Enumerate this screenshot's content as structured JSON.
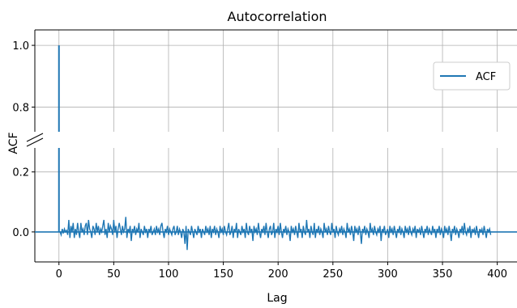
{
  "chart_data": {
    "type": "line",
    "title": "Autocorrelation",
    "xlabel": "Lag",
    "ylabel": "ACF",
    "grid": true,
    "broken_y_axis": true,
    "xlim": [
      -22,
      418
    ],
    "xticks": [
      0,
      50,
      100,
      150,
      200,
      250,
      300,
      350,
      400
    ],
    "upper_panel": {
      "ylim": [
        0.72,
        1.05
      ],
      "yticks": [
        1.0,
        0.8
      ]
    },
    "lower_panel": {
      "ylim": [
        -0.1,
        0.28
      ],
      "yticks": [
        0.2,
        0.0
      ]
    },
    "legend": {
      "position": "top-right",
      "entries": [
        "ACF"
      ]
    },
    "series": [
      {
        "name": "ACF",
        "color": "#1f77b4",
        "lag0": 1.0,
        "lags_start": 1,
        "values": [
          0.0,
          -0.01,
          0.01,
          -0.005,
          0.01,
          0.0,
          0.005,
          -0.01,
          0.04,
          -0.02,
          0.02,
          0.0,
          0.03,
          -0.02,
          0.01,
          -0.01,
          0.03,
          0.0,
          -0.02,
          0.03,
          0.0,
          0.01,
          -0.01,
          0.02,
          0.03,
          -0.01,
          0.04,
          0.01,
          0.0,
          -0.02,
          0.02,
          0.01,
          -0.01,
          0.03,
          0.0,
          0.02,
          -0.01,
          0.01,
          0.0,
          0.02,
          0.04,
          -0.01,
          0.01,
          -0.02,
          0.03,
          0.0,
          0.02,
          0.01,
          -0.01,
          0.04,
          0.0,
          0.02,
          -0.02,
          0.01,
          0.03,
          0.01,
          -0.01,
          0.02,
          0.0,
          0.01,
          0.05,
          -0.02,
          0.01,
          0.0,
          0.02,
          -0.03,
          0.01,
          0.0,
          0.02,
          -0.01,
          0.01,
          0.0,
          0.03,
          -0.02,
          0.01,
          0.0,
          -0.01,
          0.02,
          0.0,
          0.01,
          -0.02,
          0.01,
          0.0,
          0.02,
          -0.01,
          0.0,
          0.01,
          -0.01,
          0.02,
          0.0,
          0.01,
          -0.01,
          0.02,
          0.03,
          0.0,
          -0.02,
          0.01,
          0.0,
          0.02,
          -0.01,
          0.01,
          0.0,
          -0.01,
          0.01,
          0.02,
          -0.01,
          0.0,
          0.02,
          -0.01,
          0.01,
          0.0,
          -0.02,
          0.01,
          0.0,
          -0.04,
          0.02,
          -0.06,
          0.01,
          0.0,
          -0.01,
          0.02,
          0.0,
          -0.02,
          0.01,
          0.0,
          -0.01,
          0.02,
          0.0,
          0.01,
          -0.02,
          0.01,
          0.0,
          -0.01,
          0.02,
          0.0,
          0.01,
          -0.01,
          0.02,
          -0.02,
          0.01,
          0.0,
          0.02,
          -0.01,
          0.01,
          0.0,
          -0.02,
          0.02,
          0.0,
          0.01,
          -0.01,
          0.02,
          0.0,
          -0.01,
          0.01,
          0.03,
          -0.01,
          0.0,
          0.02,
          -0.02,
          0.01,
          0.0,
          0.03,
          -0.02,
          0.01,
          0.0,
          -0.01,
          0.02,
          0.0,
          0.01,
          -0.02,
          0.03,
          0.0,
          -0.01,
          0.02,
          0.0,
          0.01,
          -0.03,
          0.02,
          0.0,
          0.01,
          -0.01,
          0.03,
          0.0,
          -0.02,
          0.01,
          0.0,
          0.02,
          -0.01,
          0.03,
          0.0,
          -0.02,
          0.01,
          0.02,
          -0.01,
          0.0,
          0.03,
          -0.02,
          0.01,
          0.0,
          0.02,
          -0.01,
          0.03,
          0.0,
          -0.02,
          0.01,
          0.0,
          0.02,
          -0.01,
          0.01,
          0.0,
          -0.03,
          0.02,
          0.0,
          0.01,
          -0.01,
          0.02,
          0.0,
          -0.02,
          0.03,
          0.0,
          0.01,
          -0.02,
          0.02,
          0.0,
          -0.01,
          0.04,
          0.0,
          0.01,
          -0.02,
          0.02,
          0.0,
          -0.01,
          0.03,
          -0.02,
          0.01,
          0.0,
          0.02,
          -0.01,
          0.01,
          0.0,
          -0.02,
          0.03,
          0.0,
          0.01,
          -0.01,
          0.02,
          0.0,
          -0.01,
          0.03,
          0.0,
          0.01,
          -0.02,
          0.02,
          0.0,
          -0.01,
          0.01,
          0.0,
          0.02,
          -0.01,
          0.01,
          0.0,
          -0.02,
          0.03,
          0.0,
          0.01,
          -0.01,
          0.02,
          0.0,
          -0.03,
          0.02,
          0.0,
          0.01,
          -0.01,
          0.02,
          0.0,
          -0.04,
          0.01,
          0.0,
          0.02,
          -0.01,
          0.01,
          0.0,
          -0.02,
          0.03,
          0.0,
          0.01,
          -0.01,
          0.02,
          0.0,
          -0.01,
          0.01,
          0.0,
          0.02,
          -0.03,
          0.01,
          0.0,
          0.02,
          -0.01,
          0.0,
          0.01,
          -0.02,
          0.02,
          0.0,
          0.01,
          -0.01,
          0.02,
          0.0,
          -0.02,
          0.01,
          0.0,
          0.02,
          -0.01,
          0.01,
          0.0,
          -0.02,
          0.02,
          0.0,
          0.01,
          -0.01,
          0.02,
          0.0,
          -0.01,
          0.01,
          0.0,
          0.02,
          -0.02,
          0.01,
          0.0,
          0.01,
          -0.01,
          0.02,
          0.0,
          -0.02,
          0.01,
          0.0,
          0.02,
          -0.01,
          0.01,
          0.0,
          -0.01,
          0.02,
          0.0,
          0.01,
          -0.02,
          0.01,
          0.0,
          0.02,
          -0.01,
          0.01,
          0.0,
          -0.02,
          0.02,
          0.0,
          0.01,
          -0.01,
          0.02,
          0.0,
          -0.03,
          0.01,
          0.0,
          0.02,
          -0.01,
          0.01,
          0.0,
          -0.02,
          0.01,
          0.0,
          0.02,
          -0.01,
          0.03,
          0.0,
          -0.01,
          0.01,
          0.0,
          0.02,
          -0.02,
          0.01,
          0.0,
          0.01,
          -0.01,
          0.02,
          0.0,
          -0.02,
          0.01,
          0.0,
          0.01,
          -0.01,
          0.02,
          0.0,
          -0.02,
          0.01,
          0.0,
          0.01,
          -0.01
        ]
      }
    ]
  }
}
